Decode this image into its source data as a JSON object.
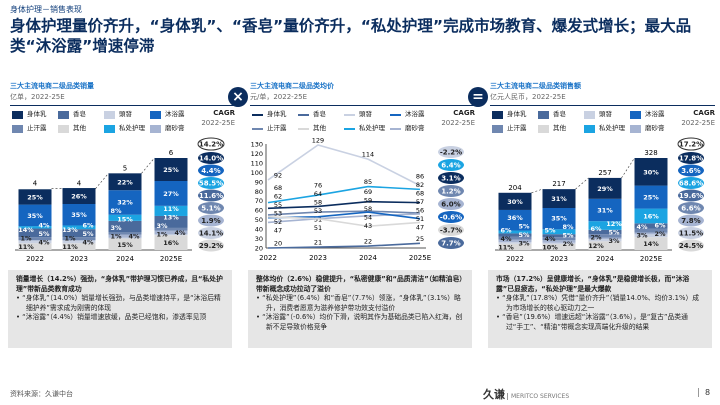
{
  "subtitle": "身体护理－销售表现",
  "title": "身体护理量价齐升，“身体乳”、“香皂”量价齐升，“私处护理”完成市场教育、爆发式增长；最大品类“沐浴露”增速停滞",
  "operators": [
    "×",
    "="
  ],
  "colors": {
    "身体乳": "#0b2d5e",
    "香皂": "#4a6a9c",
    "頭發": "#c9d1e2",
    "沐浴露": "#1565c0",
    "止汗露": "#6f87b0",
    "其他": "#d9d9d9",
    "私处护理": "#1ba4e2",
    "磨砂膏": "#a6b4d2"
  },
  "legend_order": [
    "身体乳",
    "香皂",
    "頭發",
    "沐浴露",
    "止汗露",
    "其他",
    "私处护理",
    "磨砂膏"
  ],
  "cagr_label": "CAGR",
  "cagr_period": "2022-25E",
  "chart_data": [
    {
      "type": "bar",
      "stacked": true,
      "title": "三大主流电商二级品类销量",
      "unit": "亿单，2022-25E",
      "categories": [
        "2022",
        "2023",
        "2024",
        "2025E"
      ],
      "totals": [
        4,
        4,
        5,
        6
      ],
      "total_cagr": "14.2%",
      "stack_order": [
        "其他",
        "頭發",
        "磨砂膏",
        "止汗露",
        "香皂",
        "私处护理",
        "沐浴露",
        "身体乳"
      ],
      "shares": [
        [
          11,
          4,
          1,
          5,
          14,
          4,
          35,
          25
        ],
        [
          11,
          4,
          1,
          5,
          13,
          6,
          35,
          26
        ],
        [
          15,
          1,
          4,
          3,
          15,
          8,
          32,
          22
        ],
        [
          16,
          1,
          4,
          3,
          13,
          11,
          27,
          25
        ]
      ],
      "cagr": [
        {
          "name": "身体乳",
          "value": "14.0%"
        },
        {
          "name": "沐浴露",
          "value": "4.4%"
        },
        {
          "name": "私处护理",
          "value": "58.5%"
        },
        {
          "name": "香皂",
          "value": "11.6%"
        },
        {
          "name": "止汗露",
          "value": "5.1%"
        },
        {
          "name": "磨砂膏",
          "value": "1.9%"
        },
        {
          "name": "頭發",
          "value": "14.1%"
        },
        {
          "name": "其他",
          "value": "29.2%"
        }
      ]
    },
    {
      "type": "line",
      "title": "三大主流电商二级品类均价",
      "unit": "元/单，2022-25E",
      "categories": [
        "2022",
        "2023",
        "2024",
        "2025E"
      ],
      "ylim": [
        20,
        130
      ],
      "yticks": [
        20,
        30,
        40,
        50,
        60,
        70,
        80,
        90,
        100,
        110,
        120,
        130
      ],
      "series": [
        {
          "name": "頭發",
          "values": [
            92,
            129,
            114,
            86
          ],
          "cagr": "-2.2%"
        },
        {
          "name": "私处护理",
          "values": [
            68,
            76,
            85,
            82
          ],
          "cagr": "6.4%"
        },
        {
          "name": "身体乳",
          "values": [
            62,
            64,
            69,
            68
          ],
          "cagr": "3.1%"
        },
        {
          "name": "止汗露",
          "values": [
            55,
            58,
            59,
            57
          ],
          "cagr": "1.2%"
        },
        {
          "name": "磨砂膏",
          "values": [
            47,
            51,
            54,
            56
          ],
          "cagr": "6.0%"
        },
        {
          "name": "沐浴露",
          "values": [
            52,
            53,
            58,
            51
          ],
          "cagr": "-0.6%"
        },
        {
          "name": "其他",
          "values": [
            53,
            51,
            43,
            47
          ],
          "cagr": "-3.7%"
        },
        {
          "name": "香皂",
          "values": [
            20,
            21,
            22,
            25
          ],
          "cagr": "7.7%"
        }
      ]
    },
    {
      "type": "bar",
      "stacked": true,
      "title": "三大主流电商二级品类销售额",
      "unit": "亿元人民币，2022-25E",
      "categories": [
        "2022",
        "2023",
        "2024",
        "2025E"
      ],
      "totals": [
        204,
        217,
        257,
        328
      ],
      "total_cagr": "17.2%",
      "stack_order": [
        "其他",
        "頭發",
        "磨砂膏",
        "止汗露",
        "香皂",
        "私处护理",
        "沐浴露",
        "身体乳"
      ],
      "shares": [
        [
          11,
          3,
          4,
          5,
          6,
          5,
          36,
          30
        ],
        [
          10,
          2,
          4,
          5,
          5,
          8,
          35,
          31
        ],
        [
          12,
          3,
          2,
          5,
          6,
          12,
          31,
          29
        ],
        [
          14,
          3,
          2,
          4,
          6,
          16,
          25,
          30
        ]
      ],
      "cagr": [
        {
          "name": "身体乳",
          "value": "17.8%"
        },
        {
          "name": "沐浴露",
          "value": "3.6%"
        },
        {
          "name": "私处护理",
          "value": "68.6%"
        },
        {
          "name": "香皂",
          "value": "19.6%"
        },
        {
          "name": "止汗露",
          "value": "6.6%"
        },
        {
          "name": "磨砂膏",
          "value": "7.8%"
        },
        {
          "name": "頭發",
          "value": "11.5%"
        },
        {
          "name": "其他",
          "value": "24.5%"
        }
      ]
    }
  ],
  "notes": [
    {
      "head": "销量增长（14.2%）强劲，“身体乳”带护理习惯已养成，且“私处护理”带新品类教育成功",
      "bullets": [
        "“身体乳”（14.0%）销量增长强劲，与品类增速持平，是“沐浴后精细护养”需求成为刚需的体现",
        "“沐浴露”（4.4%）销量增速放缓，品类已经饱和，渗透率见顶"
      ]
    },
    {
      "head": "整体均价（2.6%）稳健提升，“私密健康”和“品质清洁”（如精油皂）带新概念成功拉动了溢价",
      "bullets": [
        "“私处护理”（6.4%）和“香皂”（7.7%）领涨，“身体乳”（3.1%）略升，消费者愿意为滋养修护带功效支付溢价",
        "“沐浴露”（-0.6%）均价下滑，说明其作为基础品类已陷入红海，创新不足导致价格竞争"
      ]
    },
    {
      "head": "市场（17.2%）呈健康增长，“身体乳”是稳健增长极，而“沐浴露”已显疲态，“私处护理”是最大爆款",
      "bullets": [
        "“身体乳”（17.8%）凭借“量价齐升”（销量14.0%、均价3.1%）成为市场增长的核心驱动力之一",
        "“香皂”（19.6%）增速远超“沐浴露”（3.6%），是“复古”品类通过“手工”、“精油”带概念实现高端化升级的结果"
      ]
    }
  ],
  "source": "资料来源：久谦中台",
  "logo": {
    "cn": "久谦",
    "en": "MERITCO SERVICES"
  },
  "page_number": "8"
}
